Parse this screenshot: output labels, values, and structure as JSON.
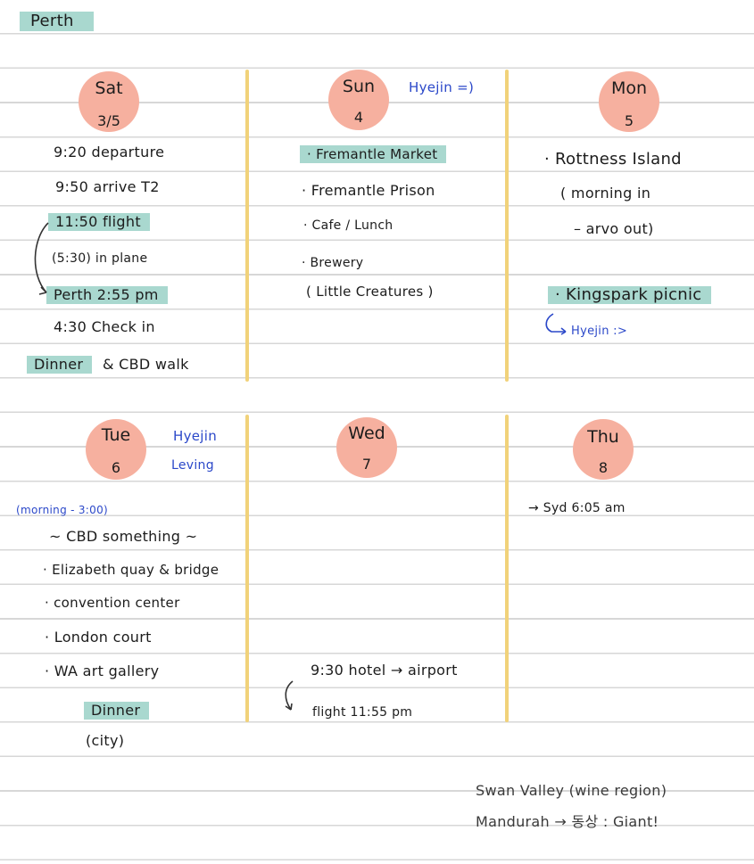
{
  "title": "Perth",
  "days": [
    {
      "day": "Sat",
      "date": "3/5"
    },
    {
      "day": "Sun",
      "date": "4"
    },
    {
      "day": "Mon",
      "date": "5"
    },
    {
      "day": "Tue",
      "date": "6"
    },
    {
      "day": "Wed",
      "date": "7"
    },
    {
      "day": "Thu",
      "date": "8"
    }
  ],
  "notes": {
    "sun_hyejin": "Hyejin =)",
    "mon_hyejin": "Hyejin :>",
    "tue_hyejin": "Hyejin",
    "tue_leaving": "Leving"
  },
  "sat": [
    "9:20   departure",
    "9:50   arrive T2",
    "11:50 flight",
    "(5:30) in plane",
    "Perth   2:55 pm",
    "4:30   Check in",
    "Dinner",
    "& CBD walk"
  ],
  "sun": [
    "· Fremantle Market",
    "· Fremantle Prison",
    "· Cafe / Lunch",
    "· Brewery",
    "( Little Creatures )"
  ],
  "mon": [
    "· Rottness Island",
    "( morning in",
    "– arvo out)",
    "· Kingspark picnic"
  ],
  "tue": [
    "(morning - 3:00)",
    "~ CBD something ~",
    "· Elizabeth quay & bridge",
    "· convention center",
    "· London court",
    "· WA art gallery",
    "Dinner",
    "(city)"
  ],
  "wed": [
    "9:30   hotel → airport",
    "flight   11:55 pm"
  ],
  "thu": [
    "→ Syd   6:05 am"
  ],
  "bottom_notes": [
    "Swan Valley (wine region)",
    "Mandurah → 동상 : Giant!"
  ],
  "colors": {
    "highlight": "#a9d8cf",
    "circle": "#f6b09f",
    "divider": "#f1d27a",
    "pen_blue": "#2b48c9"
  }
}
